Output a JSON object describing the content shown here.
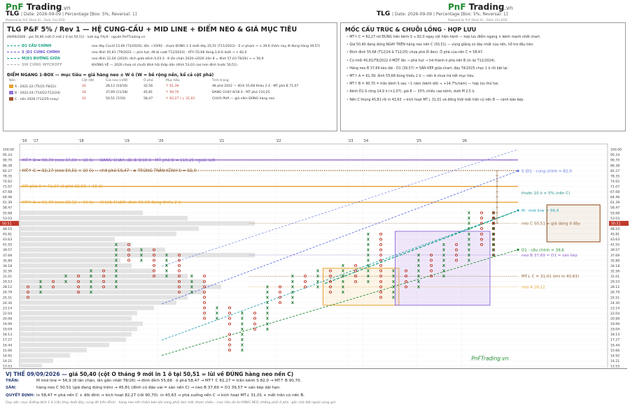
{
  "header": {
    "logo_green": "PnF",
    "logo_black": "Trading",
    "logo_suffix": ".vn",
    "symbol": "TLG",
    "info": "| Date: 2026-09-09 | Percentage [Box: 5%, Reversal: 1]",
    "powered": "Powered by PnF Stock Vn - Data: Vnx EOD"
  },
  "panel_left": {
    "title": "TLG P&F 5% / Rev 1 — HỆ CUNG-CẦU + MID LINE + ĐIỂM NEO & GIÁ MỤC TIÊU",
    "subtitle": "09/09/2026 · giá 50,40 (cột O mới 1 ô tại 50,51) · lưới log 5%/ô · nguồn PnFTrading.vn",
    "legend": [
      {
        "label": "D1 CẦU CHÍNH",
        "desc": "neo đáy Covid 15,66 (T3/2020), dốc +10/92 · chạm ĐÚNG 1 ô dưới đáy 25,51 (T11/2022) · 0 vi phạm → ≈ 39,6 (hôm nay đi đúng hàng 39,57)",
        "color": "#16a085"
      },
      {
        "label": "S |D1 CUNG CHÍNH",
        "desc": "neo đỉnh 45,81 (T9/2022 — phá hụt, đã bị vượt T12/2024) · ATH 55,68 đúng 1,6-6 dưới → ≈ 82,0",
        "color": "#6a5acd"
      },
      {
        "label": "M|D1 ĐƯỜNG GIỮA",
        "desc": "neo đỉnh 22,04 (2020), lệch giữa kênh 0,03 ô · 8 lần chặn 2020→2026 (lần 8 = đỉnh 57,03 T8/26) → ≈ 56,9",
        "color": "#16a085"
      },
      {
        "label": "SW CUNG WYCKOFF",
        "desc": "KHÔNG VẼ — 2026 chưa có chuỗi đỉnh hội thấp dần (đỉnh 53,03 cao hơn đỉnh trước 50,51)",
        "color": "#aaaaaa"
      }
    ],
    "base_title": "ĐIỂM NGANG 1-BOX — mục tiêu = giá hàng neo ± W ô (W = bề rộng nền, kể cả cột phá)",
    "base_headers": [
      "Nền",
      "Cột (W)",
      "Giá neo (n/W)",
      "Ô phá",
      "Mục tiêu",
      "Tình trạng"
    ],
    "bases": [
      {
        "name": "A · 2021-22 (T5/21-T8/22)",
        "w": "16",
        "anchor": "28,12 (10/16)",
        "brk": "32,56",
        "target": "↑ 61,39",
        "status": "đã phá 2022 — đỉnh 55,68 thiếu 2 ô · MT phá B 71,07",
        "color": "#e6a12e"
      },
      {
        "name": "B · 2022-24 (T10/22-T12/24)",
        "w": "18",
        "anchor": "37,69 (11/18)",
        "brk": "45,81",
        "target": "↑ 90,70",
        "status": "ĐANG CHẠY 8/18 ô · MT phá 110,25",
        "color": "#9370db"
      },
      {
        "name": "C · nền 2026 (T12/25→nay)",
        "w": "10",
        "anchor": "50,51 (7/10)",
        "brk": "58,47",
        "target": "↑ 82,27 / ↓ 31,01",
        "status": "CHƯA PHÁ — giá nằm ĐÚNG hàng neo",
        "color": "#a0522d"
      }
    ]
  },
  "panel_right": {
    "title": "MỐC CẤU TRÚC & CHUỖI LỒNG · HỢP LƯU",
    "items": [
      "MT↑ C = 82,27 rơi ĐÚNG trên kênh S ≈ 82,0 ngay cột hiện hành — hợp lưu điểm ngang × kênh mạnh nhất chart.",
      "Giá 50,40 đang đứng NGAY TRÊN hàng neo nền C (50,51) — vùng giằng co dày nhất của nền, hỗ trợ đầu tiên.",
      "Đỉnh đỉnh 55,68 (T12/24 & T12/25) chưa phá lỗ đen). Ô phá của nền C = 58,47.",
      "Cú nhồi 45,81/T9/2022 ở MỘT lần → phá hụt → trở thành ô phá nền B (in lại T12/2024).",
      "Hàng neo B 37,69 kèo dài · D1 (39,57) = SÀN KÉP giữa chart; đáy T4/2025 chọc 1 ô rồi bật lại.",
      "MT↑ A = 61,39: đỉnh 55,68 đúng thiếu 2 ô — nền A chưa trả hết mục tiêu.",
      "MT↑ B = 90,70 = trần kênh S sau ~1 năm (kênh dốc ≈ +14,7%/năm) — hợp lưu thứ hai.",
      "Kênh D1-S rộng 14,9 ô (×2,07); giá 8 — 33% chiều cao kênh, dưới M 2,5 ô.",
      "Nền C thủng 45,81 rồi in 43,63 → kích hoạt MT↓ 31,01 và đồng thời mất trần cũ nền B — cảnh báo kép."
    ]
  },
  "bottom": {
    "status_prefix": "VỊ THẾ 09/09/2026 —",
    "status_text": " giá 50,40 (cột O tháng 9 mới in 1 ô tại 50,51 = lùi về ĐÚNG hàng neo nền C)",
    "rows": [
      {
        "label": "TRẦN:",
        "text": "M mid line ≈ 56,9 (8 lần chặn, lần gần nhất T8/26) → đỉnh đỉnh 55,68 · ô phá 58,47 → MT↑ C 82,27 ≈ trần kênh S 82,0 → MT↑ B 90,70."
      },
      {
        "label": "SÀN:",
        "text": "hàng neo C 50,51 (giá đang đứng trên) → 45,81 (đỉnh cũ đảo vai = sàn nền C) → neo B 37,69 ≈ D1 39,57 = sàn kép dài hạn."
      },
      {
        "label": "QUYẾT ĐỊNH:",
        "text": "in 58,47 = phá nền C + đồi đỉnh → kích hoạt 82,27 (rồi 90,70). in 43,63 → phá xuống nền C → kích hoạt MT↓ 31,01 + mất trần cũ nền B."
      }
    ],
    "note": "Quy ước: mục đường lệch 1 ô (cầu thay dưới đáy, cung đè trên đỉnh) · hàng neo nét chấm kéo dài sang phải làm mốc tham chiếu · mục tiêu đo từ HÀNG NEO, không phải ô phá · gốc chữ đặt ngoài vùng giá"
  },
  "watermark": "PnFTrading.vn",
  "chart_data": {
    "type": "pnf",
    "box_percent": 5,
    "reversal": 1,
    "price_ticks": [
      "100.00",
      "95.24",
      "90.70",
      "86.38",
      "82.27",
      "78.35",
      "74.62",
      "71.07",
      "67.68",
      "64.46",
      "61.39",
      "58.47",
      "55.68",
      "53.03",
      "50.51",
      "48.10",
      "45.81",
      "43.63",
      "41.55",
      "39.57",
      "37.69",
      "35.89",
      "34.18",
      "32.56",
      "31.01",
      "29.53",
      "28.12",
      "26.79",
      "25.51",
      "24.30",
      "23.14",
      "22.04",
      "20.99",
      "19.99",
      "19.04",
      "18.13",
      "17.27",
      "16.44",
      "15.66",
      "14.92",
      "14.21",
      "13.53"
    ],
    "year_ticks": [
      {
        "label": "'16",
        "col": 0
      },
      {
        "label": "'17",
        "col": 3
      },
      {
        "label": "'18",
        "col": 15
      },
      {
        "label": "'19",
        "col": 27
      },
      {
        "label": "'20",
        "col": 36
      },
      {
        "label": "'21",
        "col": 52
      },
      {
        "label": "'22",
        "col": 67
      },
      {
        "label": "'23",
        "col": 86
      },
      {
        "label": "'24",
        "col": 90
      },
      {
        "label": "'25",
        "col": 104
      },
      {
        "label": "'26",
        "col": 116
      }
    ],
    "current_price_label": "50.51",
    "lines": [
      {
        "name": "MT↑ B = 90,70 (neo 37,69 + 18 ô) — ĐANG CHẠY, đã đi 8/18 ô · MT phá B = 110,25 ngoài lưới",
        "price": 90.7,
        "color": "#8a5cc7",
        "style": "solid"
      },
      {
        "name": "MT↑ C = 82,27 (neo 50,51 + 10 ô) — chờ phá 58,47 · ★ TRÙNG TRẦN KÊNH S = 82,0",
        "price": 82.27,
        "color": "#8b5a2b",
        "style": "dotted"
      },
      {
        "name": "MT phá A = 71,07 (ô phá 32,56 + 16 ô)",
        "price": 71.07,
        "color": "#e6a12e",
        "style": "solid"
      },
      {
        "name": "MT↑ A = 61,39 (neo 28,12 + 16 ô) — CHƯA CHẠM: đỉnh 55,68 đúng thiếu 2 ô",
        "price": 61.39,
        "color": "#e6a12e",
        "style": "solid"
      }
    ],
    "channels": [
      {
        "name": "S |D1 · cung chính ≈ 82,0",
        "color": "#5b6fe0",
        "end_price": 82.0
      },
      {
        "name": "M · mid line ≈ 56,9",
        "color": "#1f9fb5",
        "end_price": 56.9
      },
      {
        "name": "D1 · cầu chính ≈ 39,6",
        "color": "#1f8a2e",
        "end_price": 39.6
      }
    ],
    "right_labels": [
      {
        "text": "thước 10 ô × 5% (nền C)",
        "price": 67.0,
        "color": "#1f8a8a"
      },
      {
        "text": "neo C 50,51 = giá đang ở đây",
        "price": 50.51,
        "color": "#8b5a2b"
      },
      {
        "text": "neo B 37,69 ≈ D1 = sàn kép",
        "price": 37.69,
        "color": "#8a5cc7"
      },
      {
        "text": "MT↓ C = 31,01 (khi in 43,63)",
        "price": 31.01,
        "color": "#8b5a2b"
      },
      {
        "text": "neo A 28,12",
        "price": 28.12,
        "color": "#e6a12e"
      }
    ],
    "bases": [
      {
        "name": "A",
        "c1": 80,
        "c2": 99,
        "p_lo": 24.3,
        "p_hi": 32.56
      },
      {
        "name": "B",
        "c1": 99,
        "c2": 123,
        "p_lo": 24.3,
        "p_hi": 45.81
      },
      {
        "name": "C",
        "c1": 139,
        "c2": 152,
        "p_lo": 43.63,
        "p_hi": 58.47
      }
    ]
  }
}
